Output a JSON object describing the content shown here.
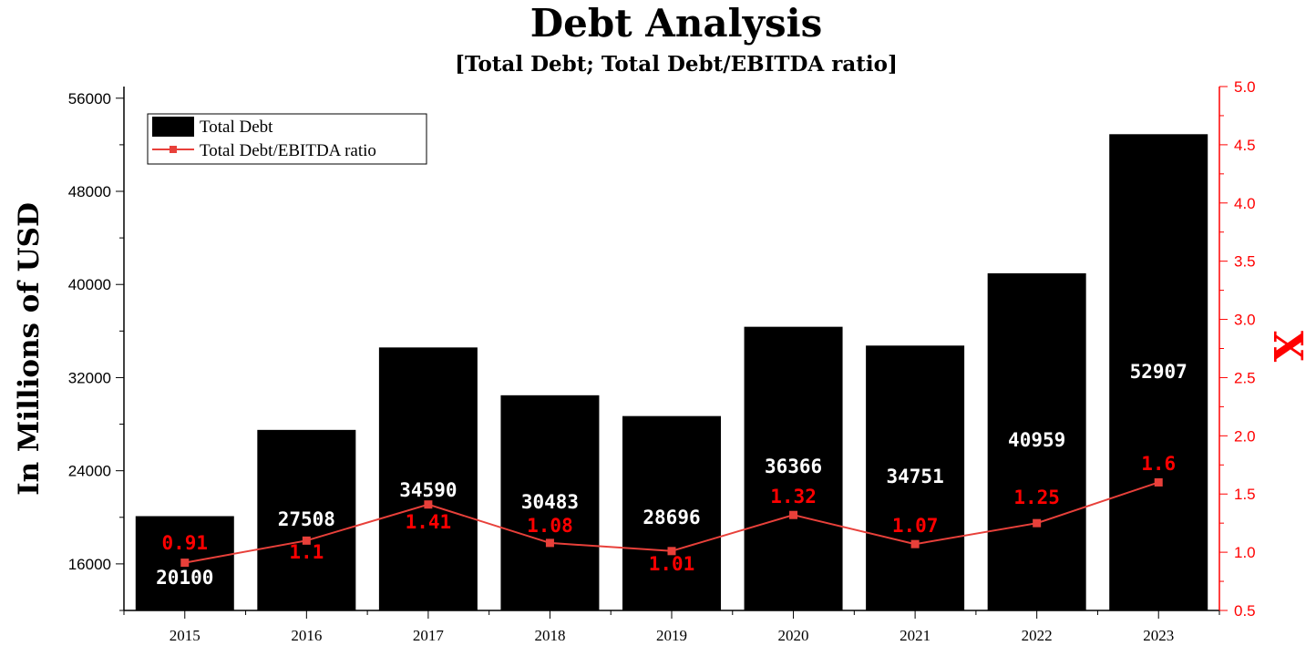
{
  "chart_data": {
    "type": "bar",
    "title": "Debt Analysis",
    "subtitle": "[Total Debt; Total Debt/EBITDA ratio]",
    "xlabel": "",
    "ylabel": "In Millions of USD",
    "y2label": "X",
    "categories": [
      "2015",
      "2016",
      "2017",
      "2018",
      "2019",
      "2020",
      "2021",
      "2022",
      "2023"
    ],
    "series": [
      {
        "name": "Total Debt",
        "type": "bar",
        "axis": "left",
        "color": "#000000",
        "values": [
          20100,
          27508,
          34590,
          30483,
          28696,
          36366,
          34751,
          40959,
          52907
        ],
        "labels": [
          "20100",
          "27508",
          "34590",
          "30483",
          "28696",
          "36366",
          "34751",
          "40959",
          "52907"
        ]
      },
      {
        "name": "Total Debt/EBITDA ratio",
        "type": "line",
        "axis": "right",
        "color": "#e8403a",
        "values": [
          0.91,
          1.1,
          1.41,
          1.08,
          1.01,
          1.32,
          1.07,
          1.25,
          1.6
        ],
        "labels": [
          "0.91",
          "1.1",
          "1.41",
          "1.08",
          "1.01",
          "1.32",
          "1.07",
          "1.25",
          "1.6"
        ]
      }
    ],
    "ylim": [
      12000,
      57000
    ],
    "yticks": [
      16000,
      24000,
      32000,
      40000,
      48000,
      56000
    ],
    "ytick_labels": [
      "16000",
      "24000",
      "32000",
      "40000",
      "48000",
      "56000"
    ],
    "y2lim": [
      0.5,
      5.0
    ],
    "y2ticks": [
      0.5,
      1.0,
      1.5,
      2.0,
      2.5,
      3.0,
      3.5,
      4.0,
      4.5,
      5.0
    ],
    "y2tick_labels": [
      "0.5",
      "1.0",
      "1.5",
      "2.0",
      "2.5",
      "3.0",
      "3.5",
      "4.0",
      "4.5",
      "5.0"
    ],
    "legend_position": "top-left",
    "grid": false
  }
}
